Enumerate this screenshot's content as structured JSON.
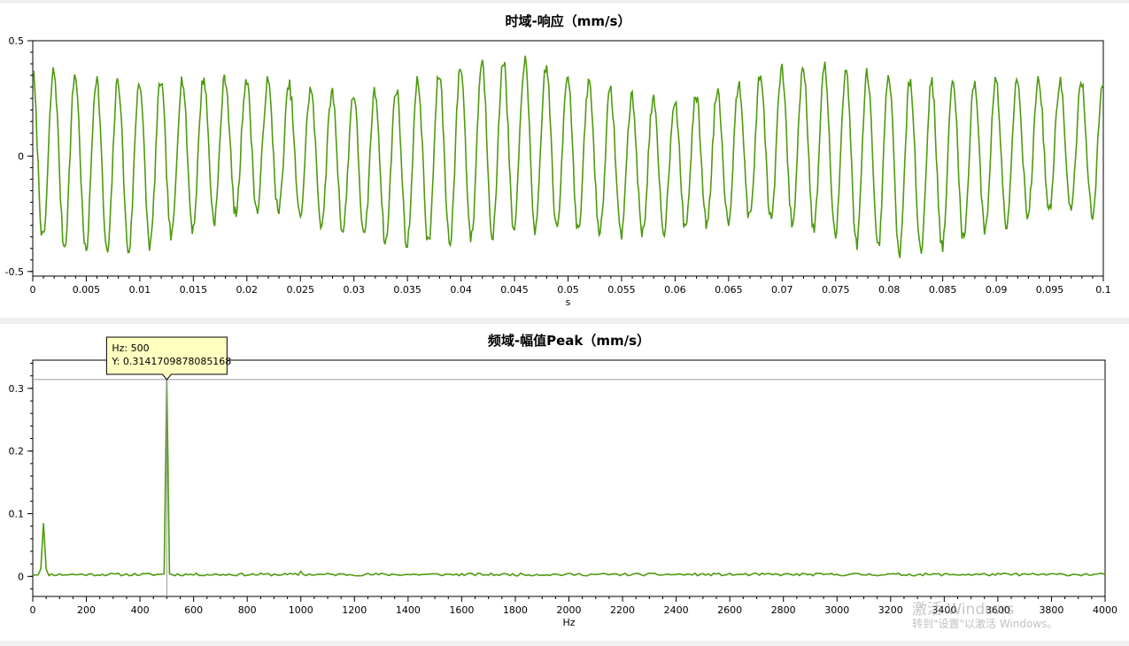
{
  "chart_data": [
    {
      "type": "line",
      "title": "时域-响应（mm/s）",
      "xlabel": "s",
      "ylabel": "",
      "xlim": [
        0,
        0.1
      ],
      "ylim": [
        -0.52,
        0.5
      ],
      "xticks": [
        "0",
        "0.005",
        "0.01",
        "0.015",
        "0.02",
        "0.025",
        "0.03",
        "0.035",
        "0.04",
        "0.045",
        "0.05",
        "0.055",
        "0.06",
        "0.065",
        "0.07",
        "0.075",
        "0.08",
        "0.085",
        "0.09",
        "0.095",
        "0.1"
      ],
      "yticks": [
        "0.5",
        "0",
        "-0.5"
      ],
      "grid": false,
      "line_color": "#4f9a0f",
      "signal": {
        "dominant_frequency_hz": 500,
        "minor_frequency_hz": 40,
        "sample_interval_s": 0.0001,
        "peak_amplitude_approx": 0.43
      }
    },
    {
      "type": "line",
      "title": "频域-幅值Peak（mm/s）",
      "xlabel": "Hz",
      "ylabel": "",
      "xlim": [
        0,
        4000
      ],
      "ylim": [
        -0.032,
        0.345
      ],
      "xticks": [
        "0",
        "200",
        "400",
        "600",
        "800",
        "1000",
        "1200",
        "1400",
        "1600",
        "1800",
        "2000",
        "2200",
        "2400",
        "2600",
        "2800",
        "3000",
        "3200",
        "3400",
        "3600",
        "3800",
        "4000"
      ],
      "yticks": [
        "0.3",
        "0.2",
        "0.1",
        "0"
      ],
      "grid": false,
      "line_color": "#4f9a0f",
      "peaks": [
        {
          "x": 40,
          "y": 0.085
        },
        {
          "x": 500,
          "y": 0.3141709878085168
        },
        {
          "x": 1000,
          "y": 0.008
        }
      ],
      "noise_floor": 0.003,
      "tooltip": {
        "line1": "Hz: 500",
        "line2": "Y: 0.3141709878085168",
        "x": 500,
        "y": 0.3141709878085168
      }
    }
  ],
  "watermark": {
    "line1": "激活 Windows",
    "line2": "转到\"设置\"以激活 Windows。"
  }
}
